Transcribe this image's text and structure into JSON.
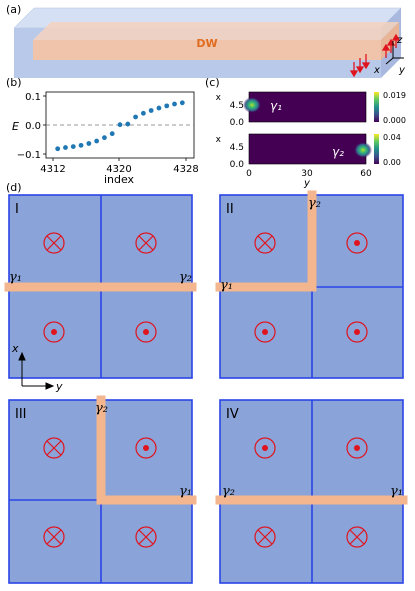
{
  "panel_labels": {
    "a": "(a)",
    "b": "(b)",
    "c": "(c)",
    "d": "(d)"
  },
  "panel_a": {
    "dw_label": "DW",
    "axes": {
      "z": "z",
      "x": "x",
      "y": "y"
    },
    "colors": {
      "slab": "#b9c9ea",
      "wall": "#f2c4a8",
      "dw_text": "#e06c1f",
      "arrow": "#e0141e"
    }
  },
  "panel_b": {
    "ylabel": "E",
    "xlabel": "index",
    "yticks": [
      "0.1",
      "0.0",
      "−0.1"
    ],
    "xticks": [
      "4312",
      "4320",
      "4328"
    ]
  },
  "panel_c": {
    "top": {
      "ylabel": "x",
      "ytick_labels": [
        "4.5",
        "0.0"
      ],
      "colorbar_max": "0.019",
      "colorbar_min": "0.000",
      "mode": "γ₁"
    },
    "bottom": {
      "ylabel": "x",
      "ytick_labels": [
        "4.5",
        "0.0"
      ],
      "colorbar_max": "0.04",
      "colorbar_min": "0.00",
      "mode": "γ₂"
    },
    "xlabel": "y",
    "xtick_labels": [
      "0",
      "30",
      "60"
    ]
  },
  "panel_d": {
    "axis_x": "x",
    "axis_y": "y",
    "quadrants": [
      {
        "roman": "I",
        "gamma_left": "γ₁",
        "gamma_right": "γ₂"
      },
      {
        "roman": "II",
        "gamma_left": "γ₁",
        "gamma_top": "γ₂"
      },
      {
        "roman": "III",
        "gamma_top": "γ₂",
        "gamma_right": "γ₁"
      },
      {
        "roman": "IV",
        "gamma_left": "γ₂",
        "gamma_right": "γ₁"
      }
    ],
    "colors": {
      "cell": "#8aa3d8",
      "border": "#2a44e8",
      "wall": "#f3b68e",
      "symbol": "#e0141e"
    }
  },
  "chart_data": {
    "type": "scatter",
    "xlabel": "index",
    "ylabel": "E",
    "xlim": [
      4312,
      4328
    ],
    "ylim": [
      -0.1,
      0.1
    ],
    "grid": false,
    "series": [
      {
        "x": [
          4312,
          4313,
          4314,
          4315,
          4316,
          4317,
          4318,
          4319,
          4320,
          4321,
          4322,
          4323,
          4324,
          4325,
          4326,
          4327,
          4328
        ],
        "values": [
          -0.077,
          -0.073,
          -0.07,
          -0.066,
          -0.06,
          -0.052,
          -0.041,
          -0.028,
          0.001,
          0.003,
          0.026,
          0.038,
          0.047,
          0.055,
          0.062,
          0.068,
          0.072
        ]
      }
    ],
    "reference_line": {
      "y": 0.0,
      "style": "dashed"
    },
    "color": "#1f77b4"
  }
}
